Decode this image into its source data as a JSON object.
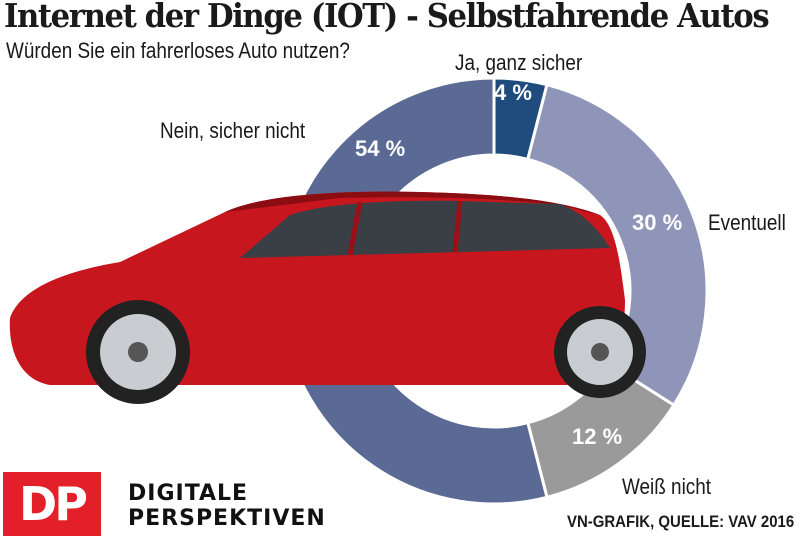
{
  "title": "Internet der Dinge (IOT) - Selbstfahrende Autos",
  "subtitle": "Würden Sie ein fahrerloses Auto nutzen?",
  "chart_data": {
    "type": "pie",
    "donut": true,
    "categories": [
      "Ja, ganz sicher",
      "Eventuell",
      "Weiß nicht",
      "Nein, sicher nicht"
    ],
    "values": [
      4,
      30,
      12,
      54
    ],
    "data_labels": [
      "4 %",
      "30 %",
      "12 %",
      "54 %"
    ],
    "colors": [
      "#1f4c7c",
      "#8f95b8",
      "#9a9a9a",
      "#5a6a95"
    ],
    "start": "12 o'clock, clockwise"
  },
  "logo": {
    "text": "DP",
    "line1": "DIGITALE",
    "line2": "PERSPEKTIVEN",
    "color": "#e3202a"
  },
  "source": "VN-GRAFIK, QUELLE: VAV 2016"
}
